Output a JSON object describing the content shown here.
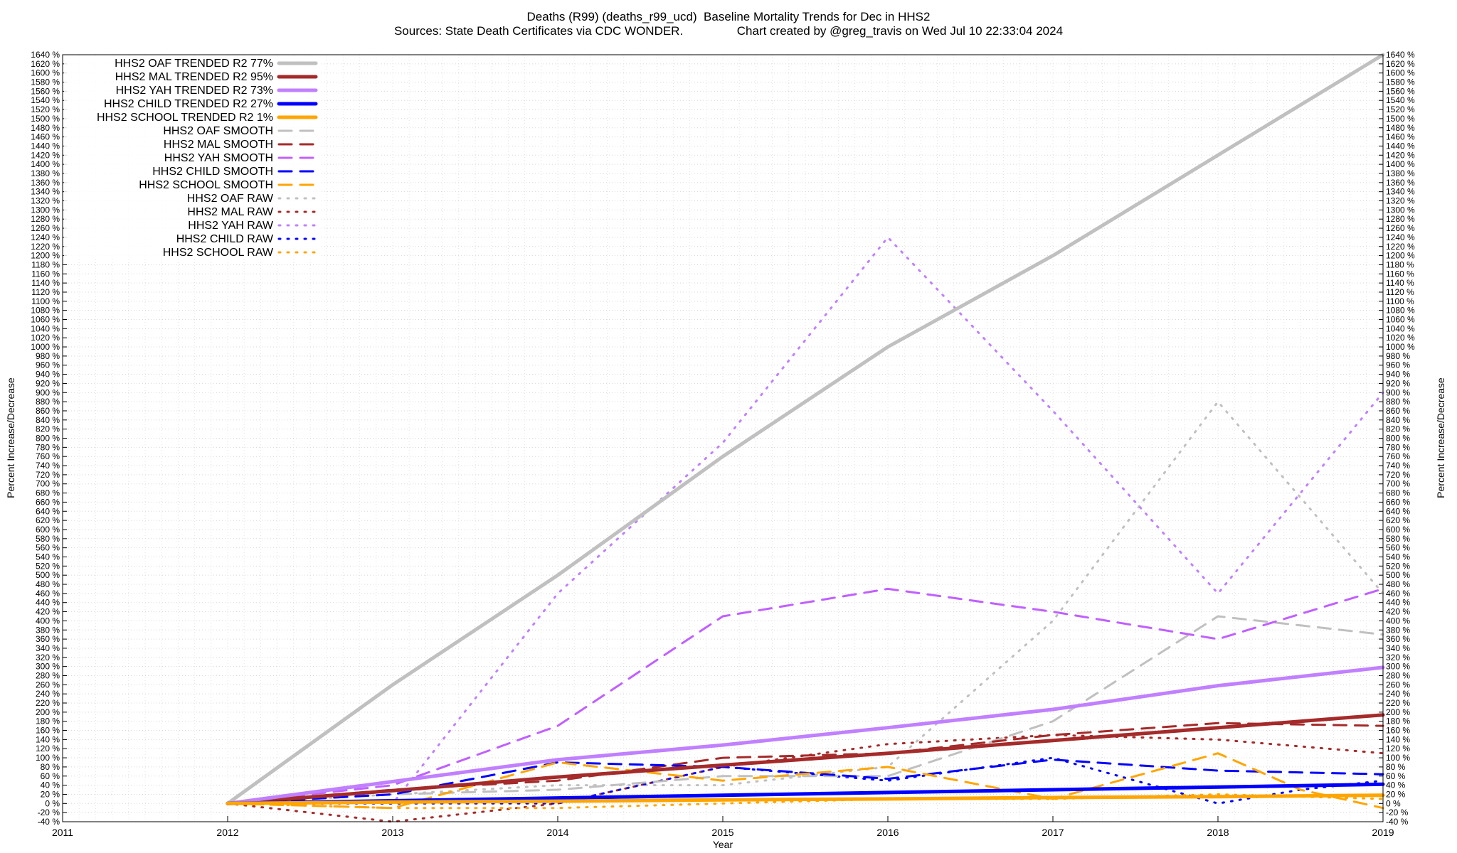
{
  "title_line1": "Deaths (R99) (deaths_r99_ucd)  Baseline Mortality Trends for Dec in HHS2",
  "title_line2": "Sources: State Death Certificates via CDC WONDER.                Chart created by @greg_travis on Wed Jul 10 22:33:04 2024",
  "chart_data": {
    "type": "line",
    "title": "Deaths (R99) (deaths_r99_ucd)  Baseline Mortality Trends for Dec in HHS2",
    "subtitle": "Sources: State Death Certificates via CDC WONDER.                Chart created by @greg_travis on Wed Jul 10 22:33:04 2024",
    "xlabel": "Year",
    "ylabel": "Percent Increase/Decrease",
    "y2label": "Percent Increase/Decrease",
    "xlim": [
      2011,
      2019
    ],
    "ylim": [
      -40,
      1640
    ],
    "x_ticks": [
      2011,
      2012,
      2013,
      2014,
      2015,
      2016,
      2017,
      2018,
      2019
    ],
    "y_tick_step": 20,
    "y_tick_suffix": " %",
    "grid": "on",
    "legend": "top-left",
    "series": [
      {
        "name": "HHS2 OAF TRENDED R2  77%",
        "color": "#c0c0c0",
        "style": "solid",
        "width": 5,
        "x": [
          2012,
          2013,
          2014,
          2015,
          2016,
          2017,
          2018,
          2019
        ],
        "y": [
          0,
          260,
          500,
          760,
          1000,
          1200,
          1420,
          1640
        ]
      },
      {
        "name": "HHS2 MAL TRENDED R2  95%",
        "color": "#a52a2a",
        "style": "solid",
        "width": 5,
        "x": [
          2012,
          2013,
          2014,
          2015,
          2016,
          2017,
          2018,
          2019
        ],
        "y": [
          0,
          28,
          58,
          84,
          110,
          138,
          166,
          194
        ]
      },
      {
        "name": "HHS2 YAH TRENDED R2  73%",
        "color": "#c080ff",
        "style": "solid",
        "width": 5,
        "x": [
          2012,
          2013,
          2014,
          2015,
          2016,
          2017,
          2018,
          2019
        ],
        "y": [
          0,
          48,
          96,
          128,
          166,
          206,
          258,
          298
        ]
      },
      {
        "name": "HHS2 CHILD TRENDED R2  27%",
        "color": "#0000ff",
        "style": "solid",
        "width": 5,
        "x": [
          2012,
          2013,
          2014,
          2015,
          2016,
          2017,
          2018,
          2019
        ],
        "y": [
          0,
          6,
          12,
          18,
          24,
          30,
          36,
          42
        ]
      },
      {
        "name": "HHS2 SCHOOL TRENDED R2  1%",
        "color": "#ffa500",
        "style": "solid",
        "width": 5,
        "x": [
          2012,
          2013,
          2014,
          2015,
          2016,
          2017,
          2018,
          2019
        ],
        "y": [
          0,
          3,
          5,
          8,
          10,
          13,
          15,
          18
        ]
      },
      {
        "name": "HHS2 OAF SMOOTH",
        "color": "#c0c0c0",
        "style": "dashed",
        "width": 3,
        "x": [
          2012,
          2013,
          2014,
          2015,
          2016,
          2017,
          2018,
          2018.5,
          2019
        ],
        "y": [
          0,
          20,
          30,
          60,
          60,
          180,
          410,
          390,
          370
        ]
      },
      {
        "name": "HHS2 MAL SMOOTH",
        "color": "#a52a2a",
        "style": "dashed",
        "width": 3,
        "x": [
          2012,
          2013,
          2014,
          2015,
          2016,
          2017,
          2018,
          2019
        ],
        "y": [
          0,
          30,
          50,
          100,
          110,
          150,
          176,
          170
        ]
      },
      {
        "name": "HHS2 YAH SMOOTH",
        "color": "#c060ff",
        "style": "dashed",
        "width": 3,
        "x": [
          2012,
          2013,
          2014,
          2015,
          2016,
          2017,
          2018,
          2019
        ],
        "y": [
          0,
          40,
          170,
          410,
          470,
          420,
          360,
          470
        ]
      },
      {
        "name": "HHS2 CHILD SMOOTH",
        "color": "#0000ff",
        "style": "dashed",
        "width": 3,
        "x": [
          2012,
          2013,
          2014,
          2015,
          2016,
          2017,
          2018,
          2019
        ],
        "y": [
          0,
          20,
          90,
          80,
          54,
          96,
          72,
          64
        ]
      },
      {
        "name": "HHS2 SCHOOL SMOOTH",
        "color": "#ffa500",
        "style": "dashed",
        "width": 3,
        "x": [
          2012,
          2013,
          2014,
          2015,
          2016,
          2017,
          2018,
          2018.5,
          2019
        ],
        "y": [
          0,
          -10,
          90,
          50,
          80,
          10,
          110,
          30,
          -10
        ]
      },
      {
        "name": "HHS2 OAF RAW",
        "color": "#c0c0c0",
        "style": "dotted",
        "width": 3,
        "x": [
          2012,
          2013,
          2014,
          2015,
          2016,
          2017,
          2018,
          2019
        ],
        "y": [
          0,
          20,
          40,
          40,
          80,
          400,
          880,
          460
        ]
      },
      {
        "name": "HHS2 MAL RAW",
        "color": "#a52a2a",
        "style": "dotted",
        "width": 3,
        "x": [
          2012,
          2013,
          2014,
          2015,
          2016,
          2017,
          2018,
          2019
        ],
        "y": [
          0,
          -40,
          0,
          80,
          130,
          150,
          140,
          110
        ]
      },
      {
        "name": "HHS2 YAH RAW",
        "color": "#c080ff",
        "style": "dotted",
        "width": 3,
        "x": [
          2012,
          2013,
          2014,
          2015,
          2016,
          2017,
          2018,
          2019
        ],
        "y": [
          0,
          0,
          460,
          790,
          1240,
          860,
          460,
          900
        ]
      },
      {
        "name": "HHS2 CHILD RAW",
        "color": "#0000ff",
        "style": "dotted",
        "width": 3,
        "x": [
          2012,
          2013,
          2014,
          2015,
          2016,
          2017,
          2018,
          2018.5,
          2019
        ],
        "y": [
          0,
          0,
          0,
          80,
          50,
          100,
          0,
          30,
          50
        ]
      },
      {
        "name": "HHS2 SCHOOL RAW",
        "color": "#ffa500",
        "style": "dotted",
        "width": 3,
        "x": [
          2012,
          2013,
          2014,
          2015,
          2016,
          2017,
          2018,
          2019
        ],
        "y": [
          0,
          -10,
          -10,
          0,
          10,
          10,
          20,
          10
        ]
      }
    ]
  }
}
